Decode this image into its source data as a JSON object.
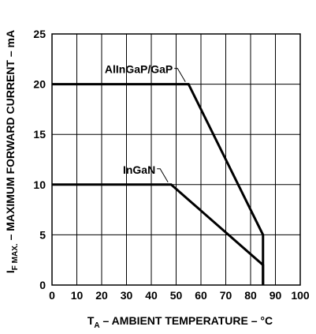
{
  "chart_data": {
    "type": "line",
    "title": "",
    "xlabel": {
      "main": "T",
      "sub": "A",
      "rest": " – AMBIENT TEMPERATURE – °C"
    },
    "ylabel": {
      "main": "I",
      "sub": "F MAX.",
      "rest": " – MAXIMUM FORWARD CURRENT – mA"
    },
    "xlim": [
      0,
      100
    ],
    "ylim": [
      0,
      25
    ],
    "x_ticks": [
      "0",
      "10",
      "20",
      "30",
      "40",
      "50",
      "60",
      "70",
      "80",
      "90",
      "100"
    ],
    "y_ticks": [
      "0",
      "5",
      "10",
      "15",
      "20",
      "25"
    ],
    "grid": true,
    "series": [
      {
        "name": "AlInGaP/GaP",
        "x": [
          0,
          55,
          85,
          85
        ],
        "y": [
          20,
          20,
          5,
          0
        ]
      },
      {
        "name": "InGaN",
        "x": [
          0,
          48,
          85,
          85
        ],
        "y": [
          10,
          10,
          2,
          0
        ]
      }
    ]
  }
}
